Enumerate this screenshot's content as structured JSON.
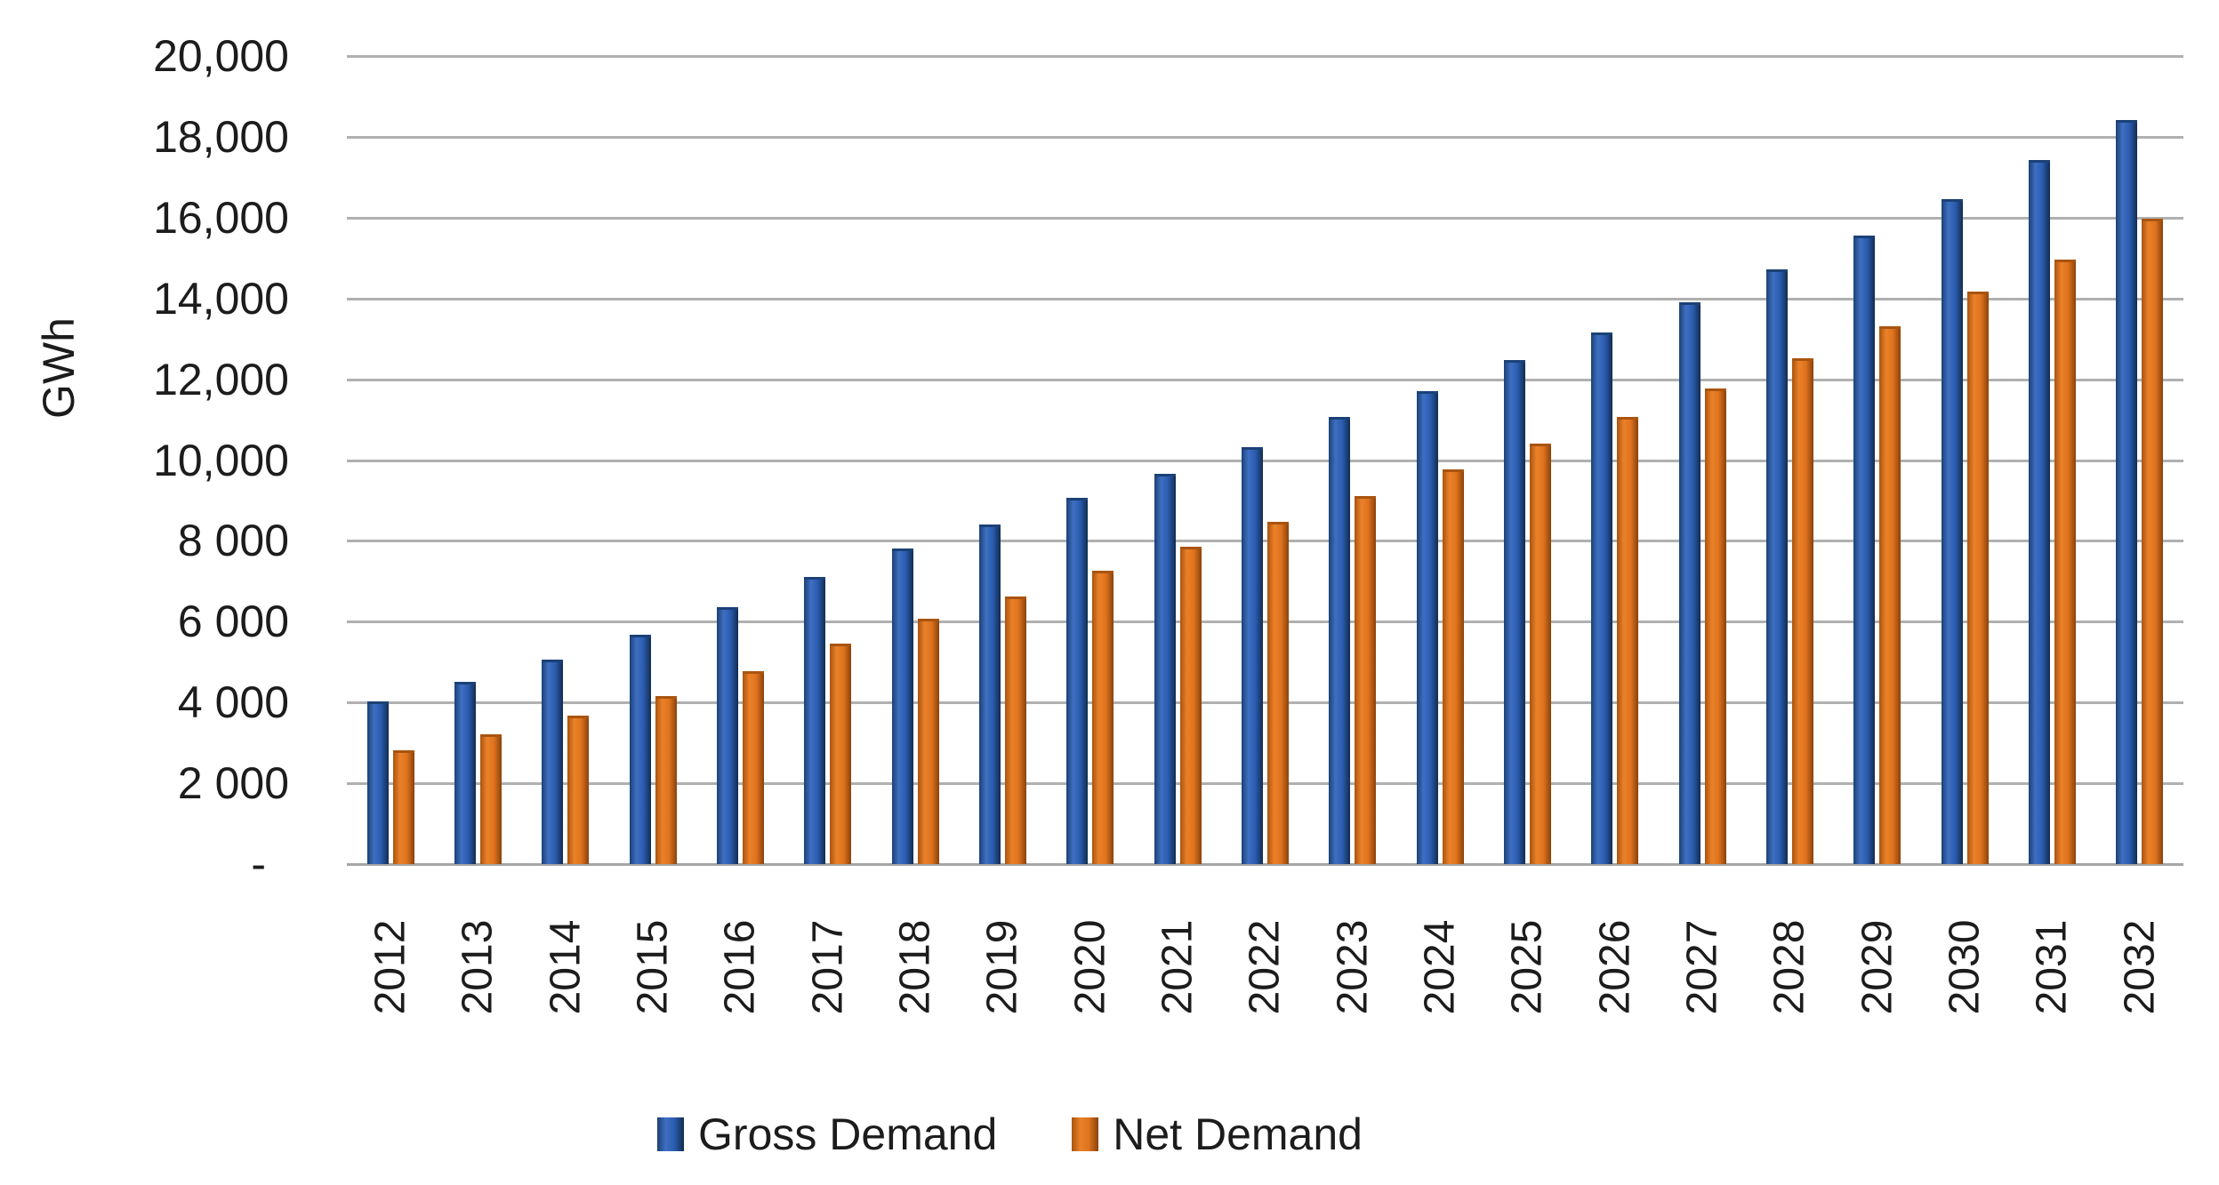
{
  "chart_data": {
    "type": "bar",
    "title": "",
    "ylabel": "GWh",
    "categories": [
      "2012",
      "2013",
      "2014",
      "2015",
      "2016",
      "2017",
      "2018",
      "2019",
      "2020",
      "2021",
      "2022",
      "2023",
      "2024",
      "2025",
      "2026",
      "2027",
      "2028",
      "2029",
      "2030",
      "2031",
      "2032"
    ],
    "series": [
      {
        "name": "Gross Demand",
        "color": "#2a5caf",
        "color_light": "#3f6fc2",
        "edge_left": "#1b4176",
        "edge_right": "#122c50",
        "values": [
          3950,
          4450,
          5000,
          5600,
          6300,
          7050,
          7750,
          8350,
          9000,
          9600,
          10250,
          11000,
          11650,
          12400,
          13100,
          13850,
          14650,
          15500,
          16400,
          17350,
          18350
        ]
      },
      {
        "name": "Net Demand",
        "color": "#df731e",
        "color_light": "#ea8129",
        "edge_left": "#a9540f",
        "edge_right": "#8a420b",
        "values": [
          2750,
          3150,
          3600,
          4100,
          4700,
          5400,
          6000,
          6550,
          7200,
          7800,
          8400,
          9050,
          9700,
          10350,
          11000,
          11700,
          12450,
          13250,
          14100,
          14900,
          15900
        ]
      }
    ],
    "ylim": [
      0,
      20000
    ],
    "ytick_step": 2000,
    "ytick_labels": [
      "-",
      "2 000",
      "4 000",
      "6 000",
      "8 000",
      "10,000",
      "12,000",
      "14,000",
      "16,000",
      "18,000",
      "20,000"
    ],
    "grid": true,
    "legend_position": "bottom",
    "axis_text_color": "#1c1c1c",
    "gridline_color": "#b0b0b0"
  }
}
